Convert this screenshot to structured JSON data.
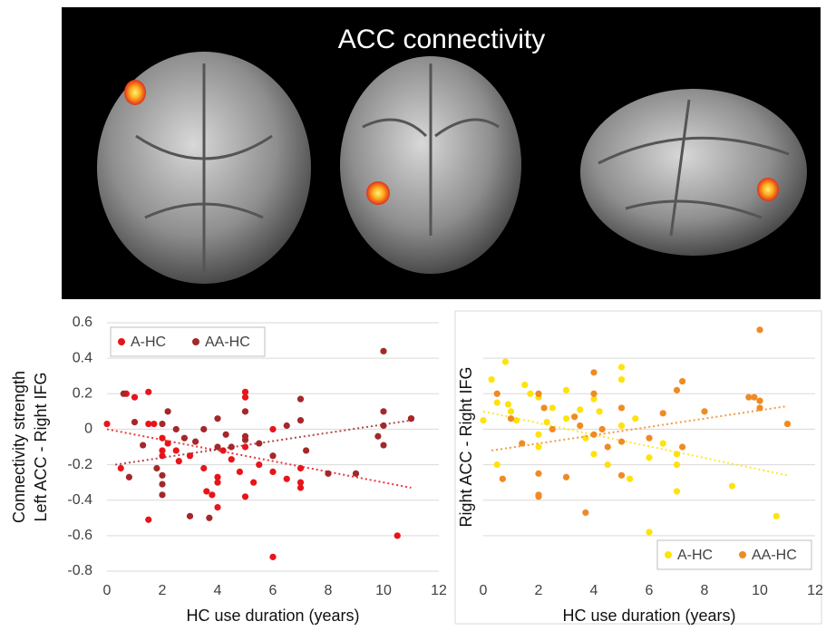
{
  "figure": {
    "title": "ACC connectivity"
  },
  "chart_data": [
    {
      "type": "scatter",
      "ylabel": [
        "Connectivity  strength",
        "Left ACC - Right IFG"
      ],
      "xlabel": "HC use duration (years)",
      "xlim": [
        0,
        12
      ],
      "xticks": [
        0,
        2,
        4,
        6,
        8,
        10,
        12
      ],
      "ylim": [
        -0.8,
        0.6
      ],
      "yticks": [
        0.6,
        0.4,
        0.2,
        0,
        -0.2,
        -0.4,
        -0.6,
        -0.8
      ],
      "show_ytick_labels": true,
      "grid": true,
      "legend": "upper left",
      "series": [
        {
          "name": "A-HC",
          "color": "#e8141a",
          "x": [
            0,
            0.5,
            0.7,
            1,
            1.5,
            1.5,
            1.5,
            1.7,
            2,
            2,
            2,
            2.2,
            2.5,
            2.6,
            3,
            3.5,
            3.6,
            3.8,
            4,
            4,
            4,
            4.2,
            4.5,
            4.8,
            5,
            5,
            5,
            5,
            5.3,
            5.5,
            6,
            6,
            6,
            6.5,
            7,
            7,
            7,
            10.5,
            11
          ],
          "values": [
            0.03,
            -0.22,
            0.2,
            0.18,
            -0.51,
            0.21,
            0.03,
            0.03,
            -0.05,
            -0.12,
            -0.15,
            -0.08,
            -0.12,
            -0.18,
            -0.15,
            -0.22,
            -0.35,
            -0.37,
            -0.27,
            -0.3,
            -0.44,
            -0.12,
            -0.17,
            -0.24,
            0.21,
            0.18,
            -0.38,
            -0.1,
            -0.3,
            -0.2,
            -0.72,
            -0.24,
            0,
            -0.28,
            -0.3,
            -0.33,
            -0.22,
            -0.6,
            0.06
          ],
          "trend": {
            "x": [
              0,
              11
            ],
            "values": [
              0,
              -0.33
            ]
          }
        },
        {
          "name": "AA-HC",
          "color": "#a3282a",
          "x": [
            0.6,
            0.8,
            1,
            1.3,
            1.8,
            2,
            2,
            2,
            2,
            2.2,
            2.5,
            2.8,
            3,
            3.2,
            3.5,
            3.7,
            4,
            4,
            4.3,
            4.5,
            5,
            5,
            5,
            5.5,
            6,
            6.5,
            7,
            7,
            7.2,
            8,
            9,
            9.8,
            10,
            10,
            10,
            10,
            11
          ],
          "values": [
            0.2,
            -0.27,
            0.04,
            -0.09,
            -0.22,
            0.03,
            -0.26,
            -0.31,
            -0.37,
            0.1,
            0,
            -0.05,
            -0.49,
            -0.07,
            0,
            -0.5,
            -0.1,
            0.06,
            -0.03,
            -0.1,
            0.1,
            -0.04,
            -0.06,
            -0.08,
            -0.15,
            0.02,
            0.17,
            0.05,
            -0.12,
            -0.25,
            -0.25,
            -0.04,
            0.44,
            0.1,
            0.02,
            -0.09,
            0.06
          ],
          "trend": {
            "x": [
              0.3,
              11
            ],
            "values": [
              -0.2,
              0.05
            ]
          }
        }
      ]
    },
    {
      "type": "scatter",
      "ylabel": [
        "Right ACC - Right IFG"
      ],
      "xlabel": "HC use duration (years)",
      "xlim": [
        0,
        12
      ],
      "xticks": [
        0,
        2,
        4,
        6,
        8,
        10,
        12
      ],
      "ylim": [
        -0.8,
        0.6
      ],
      "yticks": [
        0.4,
        0.2,
        0,
        -0.2,
        -0.4,
        -0.6
      ],
      "show_ytick_labels": false,
      "grid": true,
      "legend": "lower right",
      "series": [
        {
          "name": "A-HC",
          "color": "#ffe20a",
          "x": [
            0,
            0.3,
            0.5,
            0.5,
            0.8,
            0.9,
            1,
            1.2,
            1.5,
            1.7,
            2,
            2,
            2,
            2.3,
            2.5,
            3,
            3,
            3.5,
            3.7,
            4,
            4,
            4.2,
            4.5,
            5,
            5,
            5,
            5.3,
            5.5,
            6,
            6,
            6.5,
            7,
            7,
            7,
            9,
            10.6,
            11
          ],
          "values": [
            0.05,
            0.28,
            0.15,
            -0.2,
            0.38,
            0.14,
            0.1,
            0.05,
            0.25,
            0.2,
            0.18,
            -0.03,
            -0.1,
            0.04,
            0.12,
            0.22,
            0.06,
            0.11,
            -0.05,
            -0.14,
            0.17,
            0.1,
            -0.2,
            0.35,
            0.28,
            0.02,
            -0.28,
            0.06,
            -0.58,
            -0.16,
            -0.08,
            -0.14,
            -0.2,
            -0.35,
            -0.32,
            -0.49,
            0.03
          ],
          "trend": {
            "x": [
              0,
              11
            ],
            "values": [
              0.1,
              -0.26
            ]
          }
        },
        {
          "name": "AA-HC",
          "color": "#f08a24",
          "x": [
            0.5,
            0.7,
            1,
            1.4,
            2,
            2,
            2,
            2,
            2.2,
            2.5,
            3,
            3.3,
            3.5,
            3.7,
            4,
            4,
            4,
            4.3,
            4.5,
            5,
            5,
            5,
            6,
            6.5,
            7,
            7.2,
            7.2,
            8,
            9.6,
            9.8,
            10,
            10,
            10,
            11
          ],
          "values": [
            0.2,
            -0.28,
            0.06,
            -0.08,
            0.2,
            -0.25,
            -0.37,
            -0.38,
            0.12,
            0,
            -0.27,
            0.07,
            0.02,
            -0.47,
            0.32,
            0.2,
            -0.03,
            0,
            -0.1,
            0.12,
            -0.07,
            -0.26,
            -0.05,
            0.09,
            0.22,
            0.27,
            -0.1,
            0.1,
            0.18,
            0.18,
            0.56,
            0.16,
            0.12,
            0.03
          ],
          "trend": {
            "x": [
              0.3,
              11
            ],
            "values": [
              -0.12,
              0.13
            ]
          }
        }
      ]
    }
  ]
}
